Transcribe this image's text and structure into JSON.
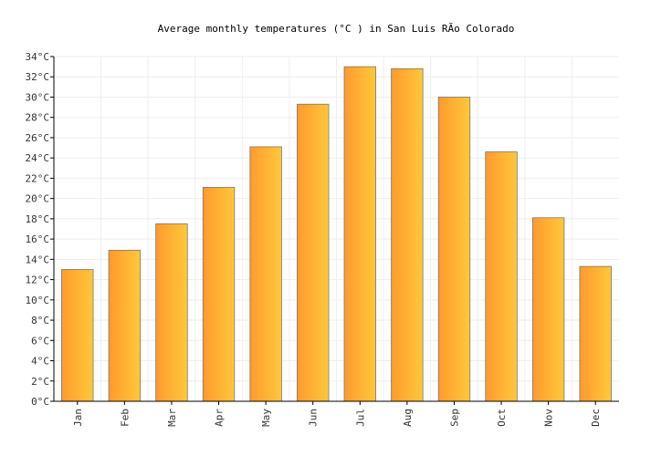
{
  "chart_data": {
    "type": "bar",
    "title": "Average monthly temperatures (°C ) in San Luis RÃ­o Colorado",
    "xlabel": "",
    "ylabel": "",
    "categories": [
      "Jan",
      "Feb",
      "Mar",
      "Apr",
      "May",
      "Jun",
      "Jul",
      "Aug",
      "Sep",
      "Oct",
      "Nov",
      "Dec"
    ],
    "values": [
      13.0,
      14.9,
      17.5,
      21.1,
      25.1,
      29.3,
      33.0,
      32.8,
      30.0,
      24.6,
      18.1,
      13.3
    ],
    "ylim": [
      0,
      34
    ],
    "y_ticks": [
      0,
      2,
      4,
      6,
      8,
      10,
      12,
      14,
      16,
      18,
      20,
      22,
      24,
      26,
      28,
      30,
      32,
      34
    ],
    "y_tick_suffix": "°C",
    "grid": true,
    "colors": {
      "bar_gradient_start": "#ff9a2e",
      "bar_gradient_end": "#ffc83a",
      "bar_stroke": "#777777",
      "grid": "#eeeeee",
      "axis": "#000000"
    }
  }
}
